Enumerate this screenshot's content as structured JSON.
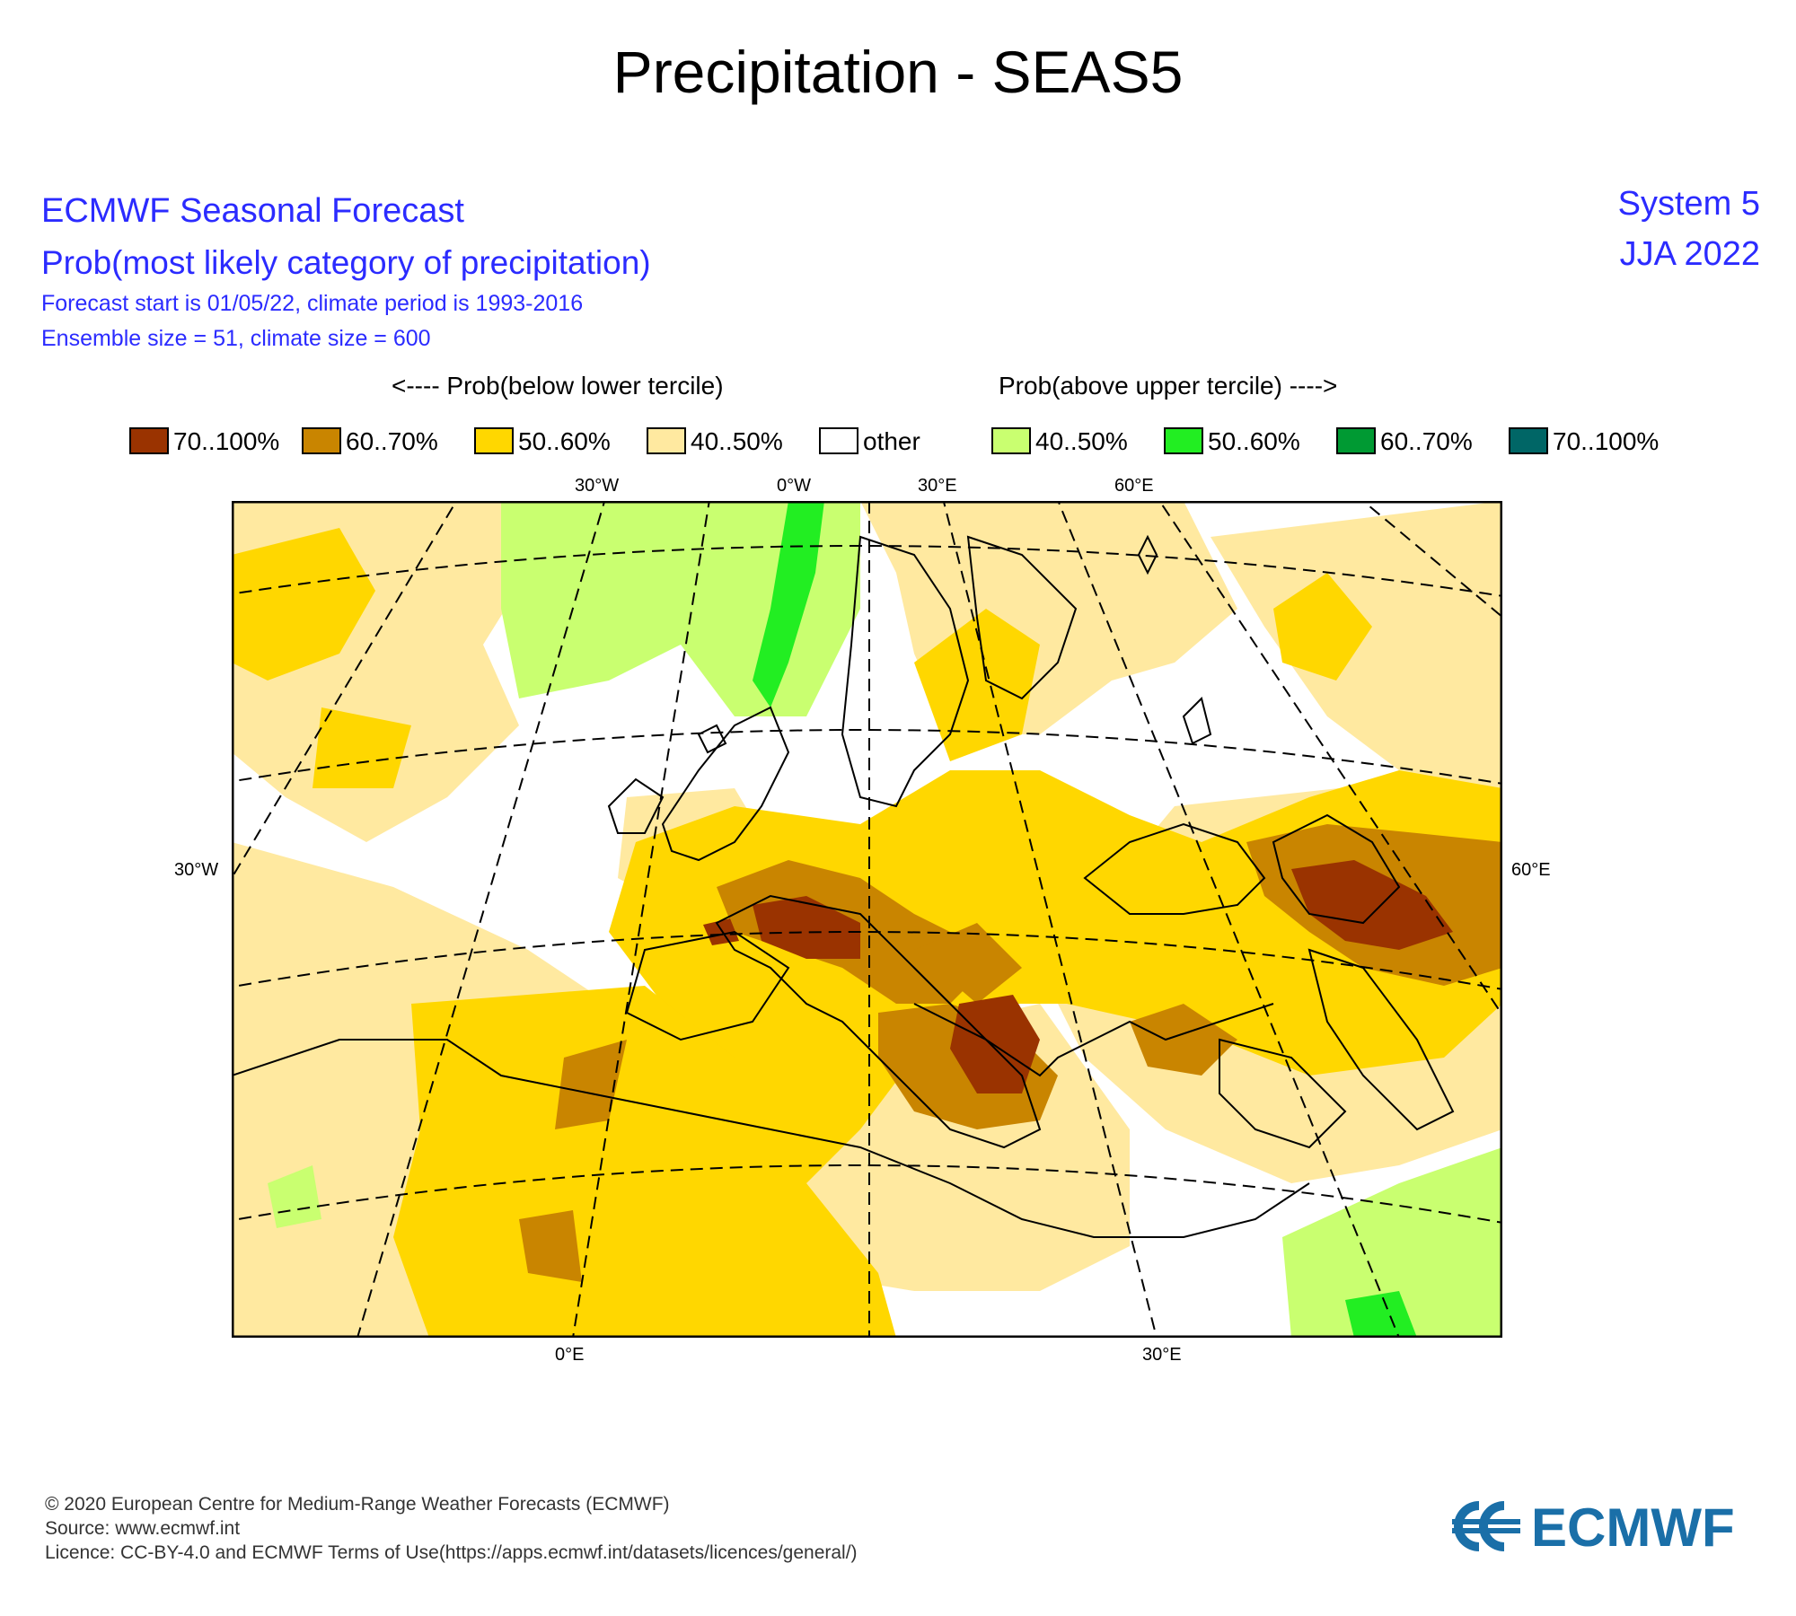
{
  "title": "Precipitation - SEAS5",
  "header": {
    "line1": "ECMWF Seasonal Forecast",
    "line2": "Prob(most likely category of precipitation)",
    "line3": "Forecast start is 01/05/22, climate period is 1993-2016",
    "line4": "Ensemble size = 51, climate size = 600",
    "system": "System 5",
    "season": "JJA 2022"
  },
  "legend": {
    "below_heading": "<---- Prob(below lower tercile)",
    "above_heading": "Prob(above upper tercile) ---->",
    "items": [
      {
        "label": "70..100%",
        "color": "#9a3300"
      },
      {
        "label": "60..70%",
        "color": "#c98500"
      },
      {
        "label": "50..60%",
        "color": "#ffd700"
      },
      {
        "label": "40..50%",
        "color": "#ffe9a0"
      },
      {
        "label": "other",
        "color": "#ffffff"
      },
      {
        "label": "40..50%",
        "color": "#c9ff70"
      },
      {
        "label": "50..60%",
        "color": "#22ee22"
      },
      {
        "label": "60..70%",
        "color": "#009a33"
      },
      {
        "label": "70..100%",
        "color": "#006666"
      }
    ]
  },
  "map": {
    "top_labels": [
      "30°W",
      "0°W",
      "30°E",
      "60°E"
    ],
    "left_label": "30°W",
    "right_label": "60°E",
    "bottom_labels": [
      "0°E",
      "30°E"
    ]
  },
  "footer": {
    "copyright": "© 2020 European Centre for Medium-Range Weather Forecasts (ECMWF)",
    "source": "Source: www.ecmwf.int",
    "licence": "Licence: CC-BY-4.0 and ECMWF Terms of Use(https://apps.ecmwf.int/datasets/licences/general/)",
    "logo_text": "ECMWF"
  }
}
